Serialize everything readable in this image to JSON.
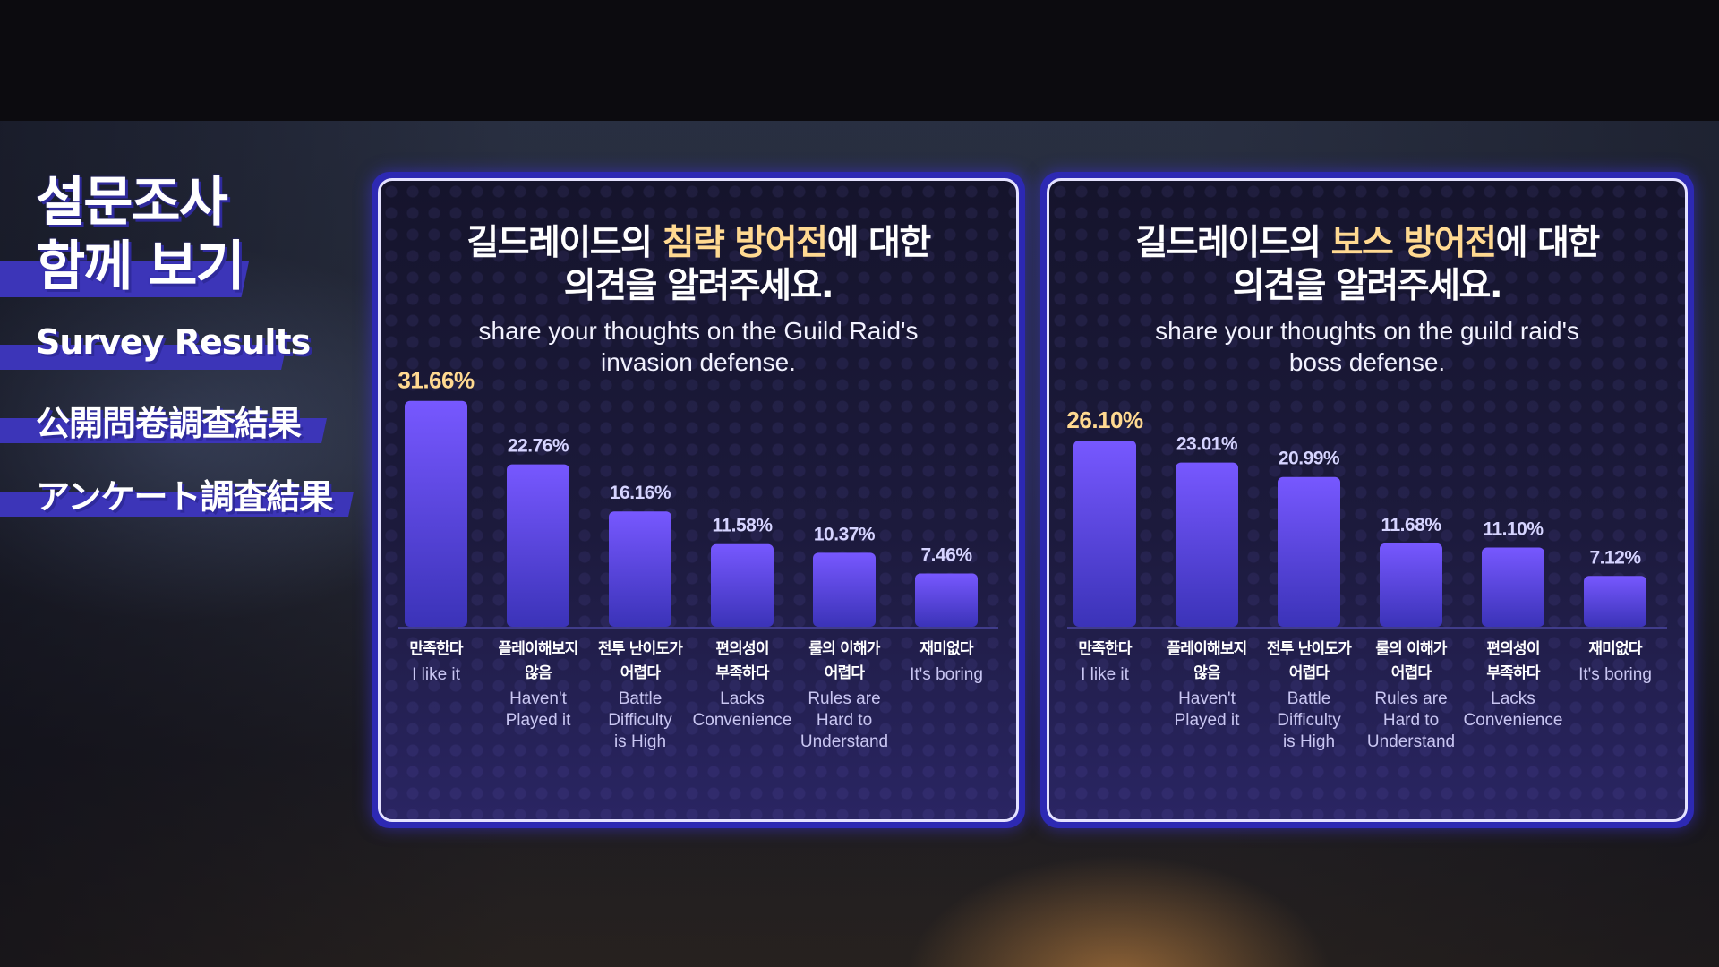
{
  "sidebar": {
    "title_lines": [
      "설문조사",
      "함께 보기"
    ],
    "survey_results": "Survey Results",
    "chinese": "公開問卷調查結果",
    "japanese": "アンケート調査結果"
  },
  "colors": {
    "accent": "#3c35b8",
    "bar_top": "#7758ff",
    "bar_bottom": "#3b33b8",
    "highlight_text": "#ffd991"
  },
  "panels": [
    {
      "title_pre": "길드레이드의 ",
      "title_hl": "침략 방어전",
      "title_post": "에 대한",
      "title_line2": "의견을 알려주세요.",
      "subtitle_line1": "share your thoughts on the Guild Raid's",
      "subtitle_line2": "invasion defense."
    },
    {
      "title_pre": "길드레이드의 ",
      "title_hl": "보스 방어전",
      "title_post": "에 대한",
      "title_line2": "의견을 알려주세요.",
      "subtitle_line1": "share your thoughts on the guild raid's",
      "subtitle_line2": "boss defense."
    }
  ],
  "chart_data": [
    {
      "type": "bar",
      "ylim": [
        0,
        32
      ],
      "categories": [
        {
          "ko": [
            "만족한다"
          ],
          "en": [
            "I like it"
          ],
          "value": 31.66,
          "label": "31.66%"
        },
        {
          "ko": [
            "플레이해보지",
            "않음"
          ],
          "en": [
            "Haven't",
            "Played it"
          ],
          "value": 22.76,
          "label": "22.76%"
        },
        {
          "ko": [
            "전투 난이도가",
            "어렵다"
          ],
          "en": [
            "Battle",
            "Difficulty",
            "is High"
          ],
          "value": 16.16,
          "label": "16.16%"
        },
        {
          "ko": [
            "편의성이",
            "부족하다"
          ],
          "en": [
            "Lacks",
            "Convenience"
          ],
          "value": 11.58,
          "label": "11.58%"
        },
        {
          "ko": [
            "룰의 이해가",
            "어렵다"
          ],
          "en": [
            "Rules are",
            "Hard to",
            "Understand"
          ],
          "value": 10.37,
          "label": "10.37%"
        },
        {
          "ko": [
            "재미없다"
          ],
          "en": [
            "It's boring"
          ],
          "value": 7.46,
          "label": "7.46%"
        }
      ]
    },
    {
      "type": "bar",
      "ylim": [
        0,
        32
      ],
      "categories": [
        {
          "ko": [
            "만족한다"
          ],
          "en": [
            "I like it"
          ],
          "value": 26.1,
          "label": "26.10%"
        },
        {
          "ko": [
            "플레이해보지",
            "않음"
          ],
          "en": [
            "Haven't",
            "Played it"
          ],
          "value": 23.01,
          "label": "23.01%"
        },
        {
          "ko": [
            "전투 난이도가",
            "어렵다"
          ],
          "en": [
            "Battle",
            "Difficulty",
            "is High"
          ],
          "value": 20.99,
          "label": "20.99%"
        },
        {
          "ko": [
            "룰의 이해가",
            "어렵다"
          ],
          "en": [
            "Rules are",
            "Hard to",
            "Understand"
          ],
          "value": 11.68,
          "label": "11.68%"
        },
        {
          "ko": [
            "편의성이",
            "부족하다"
          ],
          "en": [
            "Lacks",
            "Convenience"
          ],
          "value": 11.1,
          "label": "11.10%"
        },
        {
          "ko": [
            "재미없다"
          ],
          "en": [
            "It's boring"
          ],
          "value": 7.12,
          "label": "7.12%"
        }
      ]
    }
  ]
}
